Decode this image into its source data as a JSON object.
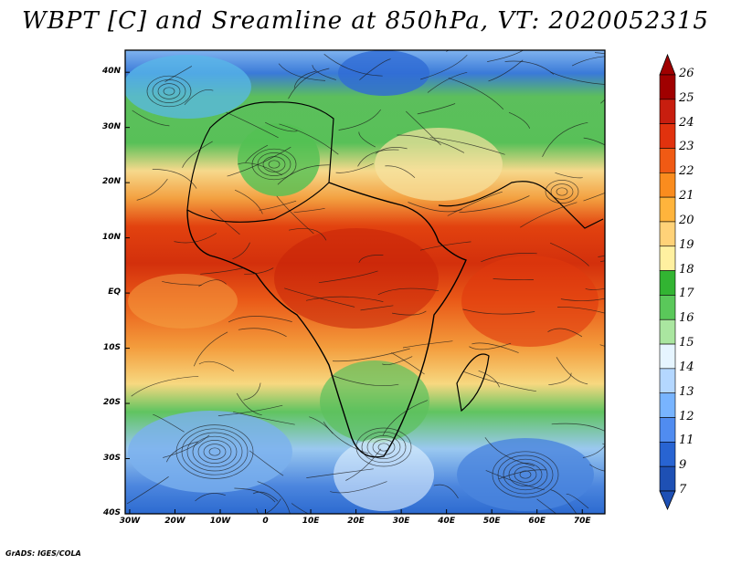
{
  "title": "WBPT [C] and Sreamline at 850hPa, VT: 2020052315",
  "credit": "GrADS: IGES/COLA",
  "lat_labels": [
    "40N",
    "30N",
    "20N",
    "10N",
    "EQ",
    "10S",
    "20S",
    "30S",
    "40S"
  ],
  "lat_values": [
    40,
    30,
    20,
    10,
    0,
    -10,
    -20,
    -30,
    -40
  ],
  "lon_labels": [
    "30W",
    "20W",
    "10W",
    "0",
    "10E",
    "20E",
    "30E",
    "40E",
    "50E",
    "60E",
    "70E"
  ],
  "lon_values": [
    -30,
    -20,
    -10,
    0,
    10,
    20,
    30,
    40,
    50,
    60,
    70
  ],
  "colorbar": {
    "labels": [
      "26",
      "25",
      "24",
      "23",
      "22",
      "21",
      "20",
      "19",
      "18",
      "17",
      "16",
      "15",
      "14",
      "13",
      "12",
      "11",
      "9",
      "7"
    ],
    "colors": [
      "#a00000",
      "#c81e0f",
      "#e1320e",
      "#f05a14",
      "#fa8c1e",
      "#ffb43c",
      "#ffd278",
      "#fff0a0",
      "#32b432",
      "#5ac85a",
      "#aae6a0",
      "#e6f5ff",
      "#b4d7ff",
      "#78b4ff",
      "#508cf0",
      "#2864d2",
      "#1e50b4"
    ]
  }
}
